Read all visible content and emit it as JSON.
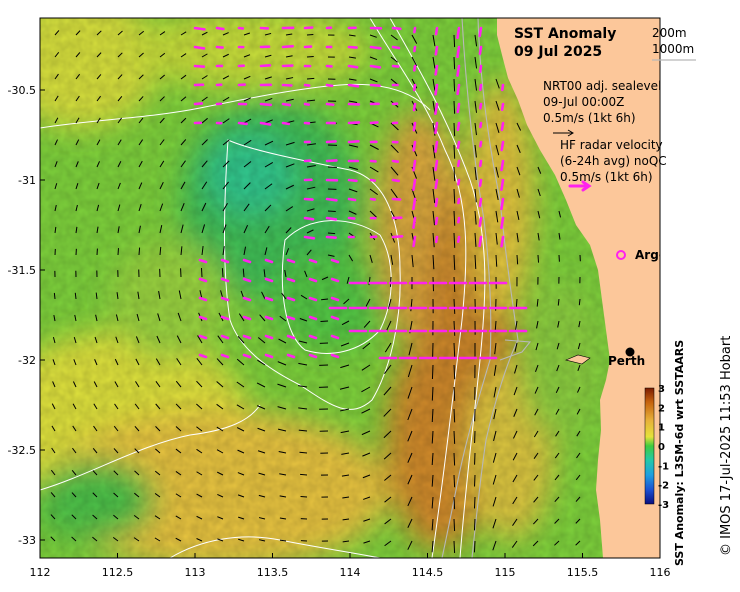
{
  "map": {
    "title_line1": "SST Anomaly",
    "title_line2": "09 Jul 2025",
    "depth_labels": [
      "200m",
      "1000m"
    ],
    "sealevel_legend": [
      "NRT00 adj. sealevel",
      "09-Jul 00:00Z",
      "0.5m/s (1kt 6h)"
    ],
    "radar_legend": [
      "HF radar velocity",
      "(6-24h avg) noQC",
      "0.5m/s (1kt 6h)"
    ],
    "argo_label": "Argo",
    "city_label": "Perth",
    "credit": "© IMOS 17-Jul-2025 11:53 Hobart",
    "colorbar_label": "SST Anomaly: L3SM-6d wrt SSTAARS",
    "colorbar_ticks": [
      "3",
      "2",
      "1",
      "0",
      "-1",
      "-2",
      "-3"
    ],
    "colors": {
      "land": "#fcc79a",
      "radar_arrow": "#ff22ee",
      "argo": "#ff22ee",
      "contour": "#ffffff",
      "isobath": "#b8b8b8"
    }
  },
  "chart_data": {
    "type": "heatmap",
    "x_ticks": [
      "112",
      "112.5",
      "113",
      "113.5",
      "114",
      "114.5",
      "115",
      "115.5",
      "116"
    ],
    "y_ticks": [
      "-30.5",
      "-31",
      "-31.5",
      "-32",
      "-32.5",
      "-33"
    ],
    "xlim": [
      112,
      116
    ],
    "ylim": [
      -33.1,
      -30.1
    ],
    "color_range": [
      -3,
      3
    ],
    "argo_float": {
      "lon": 115.8,
      "lat": -31.5
    },
    "city": {
      "name": "Perth",
      "lon": 115.86,
      "lat": -31.95
    }
  }
}
